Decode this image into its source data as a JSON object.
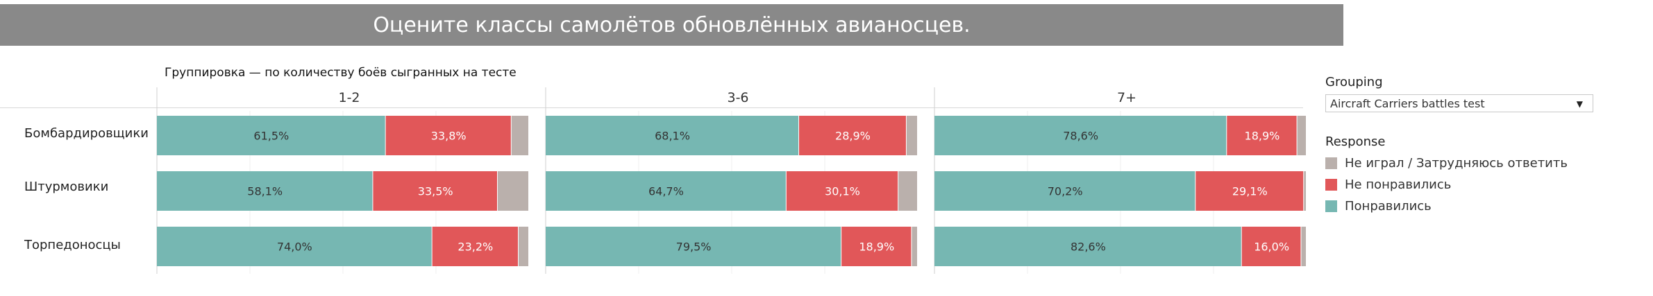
{
  "title": "Оцените классы самолётов обновлённых авианосцев.",
  "grouping_note": "Группировка — по количеству боёв сыгранных на тесте",
  "filter": {
    "label": "Grouping",
    "selected": "Aircraft Carriers battles test",
    "caret": "▼"
  },
  "legend": {
    "title": "Response",
    "items": [
      {
        "label": "Не играл / Затрудняюсь ответить",
        "color": "#BAB0AC"
      },
      {
        "label": "Не понравились",
        "color": "#E15759"
      },
      {
        "label": "Понравились",
        "color": "#76B7B2"
      }
    ]
  },
  "chart_data": {
    "type": "bar",
    "orientation": "horizontal-stacked-100",
    "panels": [
      "1-2",
      "3-6",
      "7+"
    ],
    "categories": [
      "Бомбардировщики",
      "Штурмовики",
      "Торпедоносцы"
    ],
    "series": [
      {
        "name": "Понравились",
        "color": "#76B7B2",
        "values": [
          [
            61.5,
            58.1,
            74.0
          ],
          [
            68.1,
            64.7,
            79.5
          ],
          [
            78.6,
            70.2,
            82.6
          ]
        ],
        "labels": [
          [
            "61,5%",
            "58,1%",
            "74,0%"
          ],
          [
            "68,1%",
            "64,7%",
            "79,5%"
          ],
          [
            "78,6%",
            "70,2%",
            "82,6%"
          ]
        ]
      },
      {
        "name": "Не понравились",
        "color": "#E15759",
        "values": [
          [
            33.8,
            33.5,
            23.2
          ],
          [
            28.9,
            30.1,
            18.9
          ],
          [
            18.9,
            29.1,
            16.0
          ]
        ],
        "labels": [
          [
            "33,8%",
            "33,5%",
            "23,2%"
          ],
          [
            "28,9%",
            "30,1%",
            "18,9%"
          ],
          [
            "18,9%",
            "29,1%",
            "16,0%"
          ]
        ]
      },
      {
        "name": "Не играл / Затрудняюсь ответить",
        "color": "#BAB0AC",
        "values": [
          [
            4.7,
            8.4,
            2.8
          ],
          [
            3.0,
            5.2,
            1.6
          ],
          [
            2.5,
            0.7,
            1.4
          ]
        ],
        "labels": [
          [
            "",
            "",
            ""
          ],
          [
            "",
            "",
            ""
          ],
          [
            "",
            "",
            ""
          ]
        ]
      }
    ],
    "xlim": [
      0,
      100
    ],
    "grid": true
  }
}
